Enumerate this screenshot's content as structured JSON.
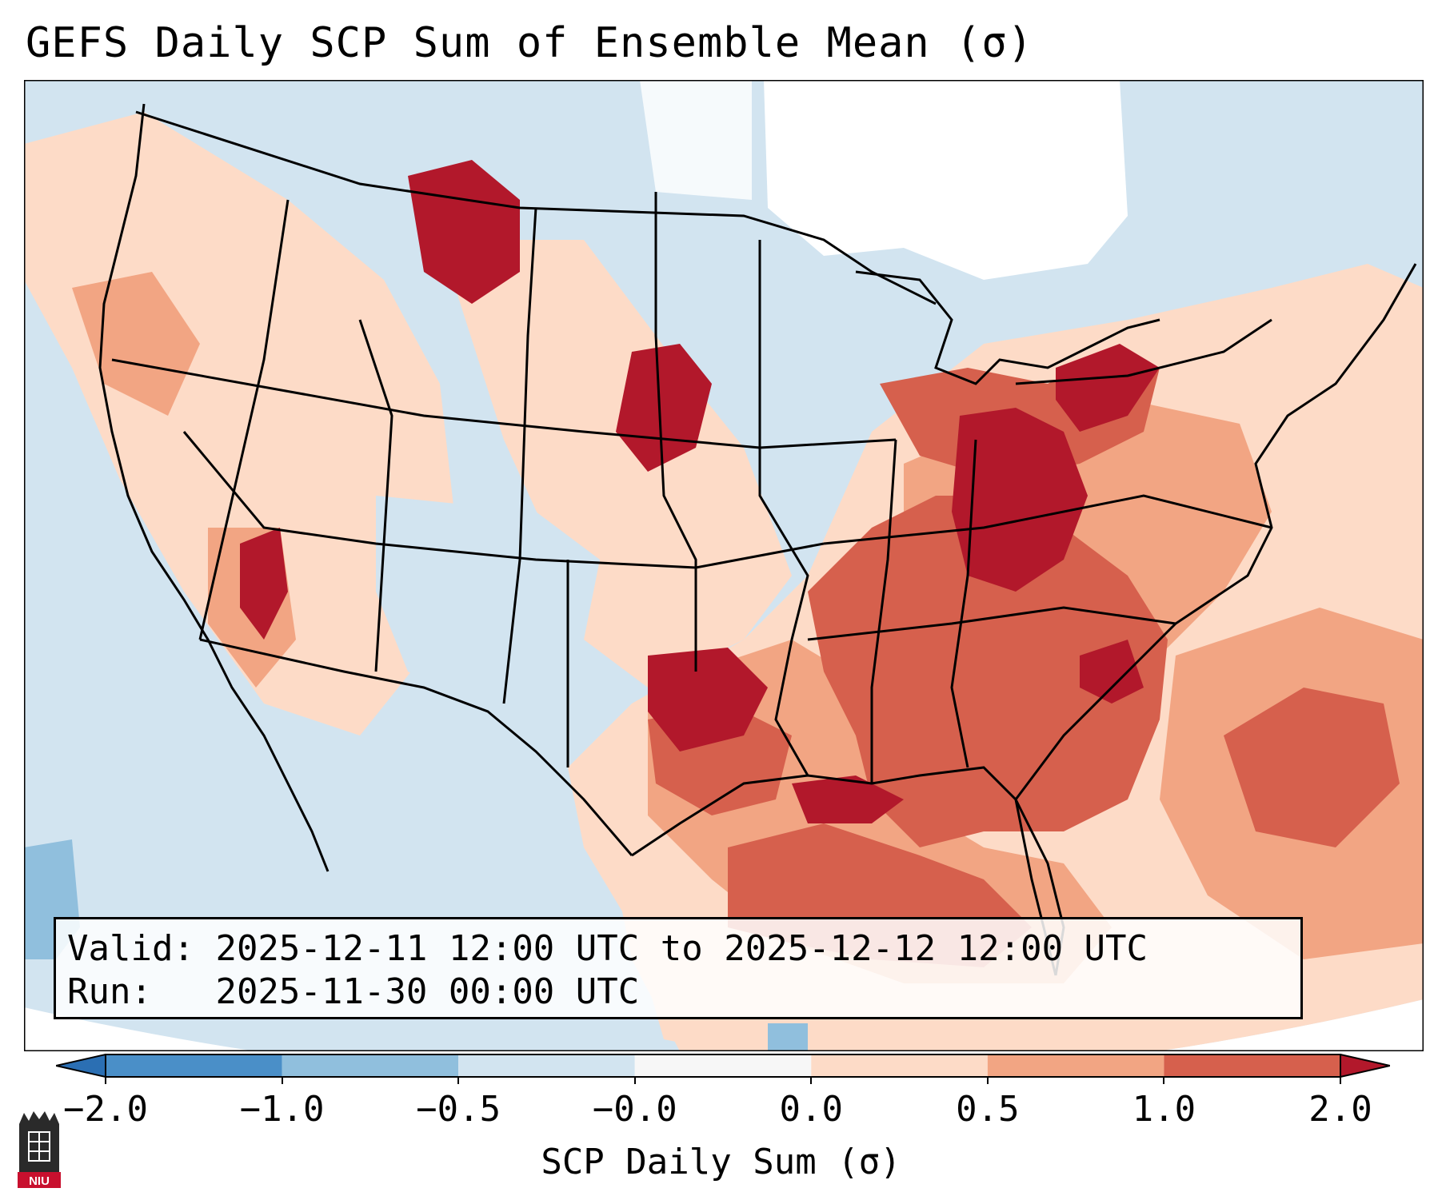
{
  "title": "GEFS Daily SCP Sum of Ensemble Mean (σ)",
  "info": {
    "valid_label": "Valid:",
    "valid_value": "2025-12-11 12:00 UTC to 2025-12-12 12:00 UTC",
    "run_label": "Run:",
    "run_value": "2025-11-30 00:00 UTC"
  },
  "colorbar": {
    "label": "SCP Daily Sum (σ)",
    "ticks": [
      "−2.0",
      "−1.0",
      "−0.5",
      "−0.0",
      "0.0",
      "0.5",
      "1.0",
      "2.0"
    ],
    "bins": [
      {
        "range": "< -2.0",
        "color": "#2b6fb3"
      },
      {
        "range": "-2.0 to -1.0",
        "color": "#4a8fc8"
      },
      {
        "range": "-1.0 to -0.5",
        "color": "#90bfdd"
      },
      {
        "range": "-0.5 to -0.0",
        "color": "#d2e4f0"
      },
      {
        "range": "-0.0 to 0.0",
        "color": "#f7f7f7"
      },
      {
        "range": "0.0 to 0.5",
        "color": "#fddbc7"
      },
      {
        "range": "0.5 to 1.0",
        "color": "#f2a583"
      },
      {
        "range": "1.0 to 2.0",
        "color": "#d6604d"
      },
      {
        "range": "> 2.0",
        "color": "#b2182b"
      }
    ]
  },
  "logo_text": "NIU",
  "colors": {
    "background_ocean": "#d2e4f0",
    "neutral": "#ffffff",
    "low_positive": "#fddbc7",
    "mid_positive": "#f2a583",
    "high_positive": "#d6604d",
    "extreme_positive": "#b2182b",
    "negative": "#90bfdd"
  }
}
